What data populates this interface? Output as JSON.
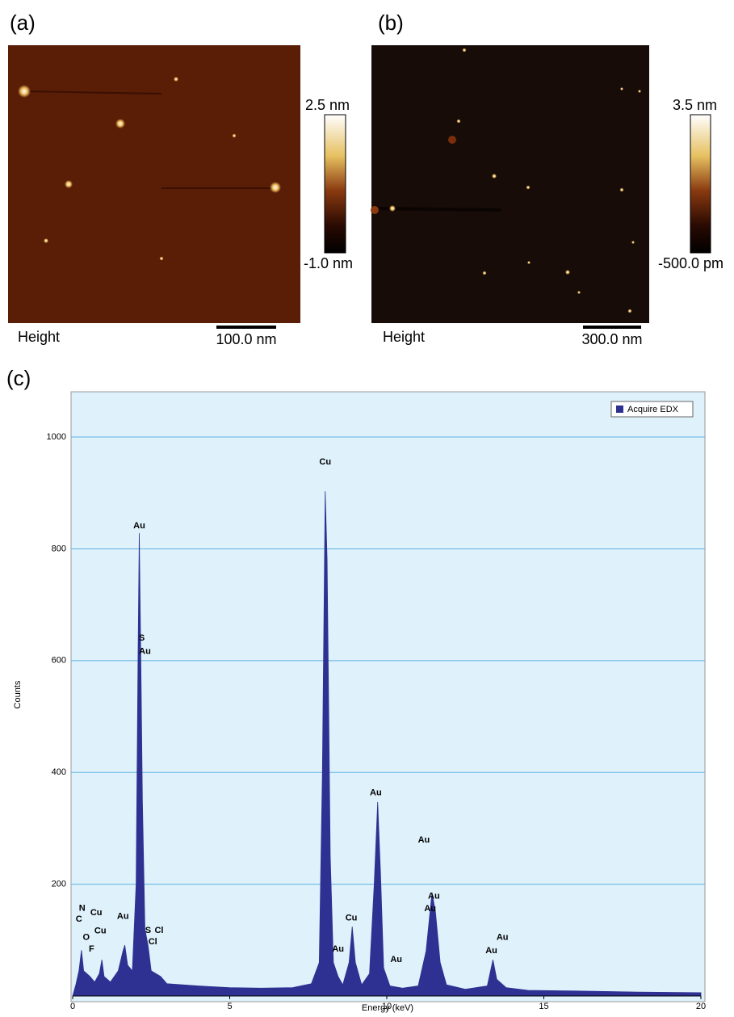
{
  "panels": [
    {
      "label": "(a)",
      "colorbar_max": "2.5 nm",
      "colorbar_min": "-1.0 nm",
      "channel": "Height",
      "scale_bar": "100.0 nm"
    },
    {
      "label": "(b)",
      "colorbar_max": "3.5 nm",
      "colorbar_min": "-500.0 pm",
      "channel": "Height",
      "scale_bar": "300.0 nm"
    }
  ],
  "chart_label": "(c)",
  "chart_data": {
    "type": "area",
    "x_label": "Energy (keV)",
    "y_label": "Counts",
    "x": [
      0.0,
      0.1,
      0.2,
      0.28,
      0.35,
      0.45,
      0.55,
      0.7,
      0.85,
      0.93,
      1.0,
      1.2,
      1.45,
      1.6,
      1.66,
      1.75,
      1.9,
      2.02,
      2.08,
      2.12,
      2.17,
      2.22,
      2.3,
      2.4,
      2.5,
      2.8,
      3.0,
      4.0,
      5.0,
      6.0,
      7.0,
      7.6,
      7.85,
      7.95,
      8.04,
      8.1,
      8.2,
      8.3,
      8.45,
      8.6,
      8.8,
      8.9,
      9.0,
      9.2,
      9.45,
      9.6,
      9.71,
      9.8,
      9.9,
      10.1,
      10.5,
      11.0,
      11.25,
      11.44,
      11.55,
      11.7,
      11.9,
      12.5,
      13.2,
      13.38,
      13.5,
      13.8,
      14.5,
      16,
      18,
      20
    ],
    "series": [
      {
        "name": "Acquire EDX",
        "color": "#2e3192",
        "values": [
          0,
          20,
          45,
          82,
          45,
          40,
          35,
          25,
          40,
          65,
          35,
          25,
          45,
          80,
          91,
          55,
          45,
          200,
          600,
          828,
          600,
          350,
          120,
          90,
          45,
          35,
          22,
          18,
          15,
          14,
          15,
          22,
          60,
          400,
          903,
          780,
          250,
          60,
          35,
          20,
          60,
          124,
          60,
          20,
          40,
          200,
          347,
          220,
          50,
          18,
          14,
          18,
          80,
          185,
          150,
          60,
          20,
          12,
          18,
          65,
          30,
          15,
          10,
          9,
          7,
          6
        ]
      }
    ],
    "annotations": [
      {
        "text": "C",
        "x": 0.2,
        "y": 137
      },
      {
        "text": "N",
        "x": 0.3,
        "y": 157
      },
      {
        "text": "O",
        "x": 0.43,
        "y": 105
      },
      {
        "text": "F",
        "x": 0.6,
        "y": 84
      },
      {
        "text": "Cu",
        "x": 0.75,
        "y": 149
      },
      {
        "text": "Cu",
        "x": 0.88,
        "y": 116
      },
      {
        "text": "Au",
        "x": 1.6,
        "y": 142
      },
      {
        "text": "Au",
        "x": 2.12,
        "y": 841
      },
      {
        "text": "S",
        "x": 2.2,
        "y": 640
      },
      {
        "text": "Au",
        "x": 2.3,
        "y": 616
      },
      {
        "text": "S",
        "x": 2.4,
        "y": 117
      },
      {
        "text": "Cl",
        "x": 2.75,
        "y": 117
      },
      {
        "text": "Cl",
        "x": 2.55,
        "y": 97
      },
      {
        "text": "Cu",
        "x": 8.04,
        "y": 955
      },
      {
        "text": "Au",
        "x": 8.45,
        "y": 84
      },
      {
        "text": "Cu",
        "x": 8.87,
        "y": 139
      },
      {
        "text": "Au",
        "x": 9.65,
        "y": 363
      },
      {
        "text": "Au",
        "x": 10.3,
        "y": 65
      },
      {
        "text": "Au",
        "x": 11.18,
        "y": 279
      },
      {
        "text": "Au",
        "x": 11.5,
        "y": 178
      },
      {
        "text": "Au",
        "x": 11.38,
        "y": 156
      },
      {
        "text": "Au",
        "x": 13.33,
        "y": 81
      },
      {
        "text": "Au",
        "x": 13.68,
        "y": 105
      }
    ],
    "xlim": [
      0,
      20
    ],
    "ylim": [
      0,
      1081
    ],
    "xticks": [
      0,
      5,
      10,
      15,
      20
    ],
    "yticks": [
      200,
      400,
      600,
      800,
      1000
    ],
    "grid": true,
    "legend": "top-right"
  }
}
